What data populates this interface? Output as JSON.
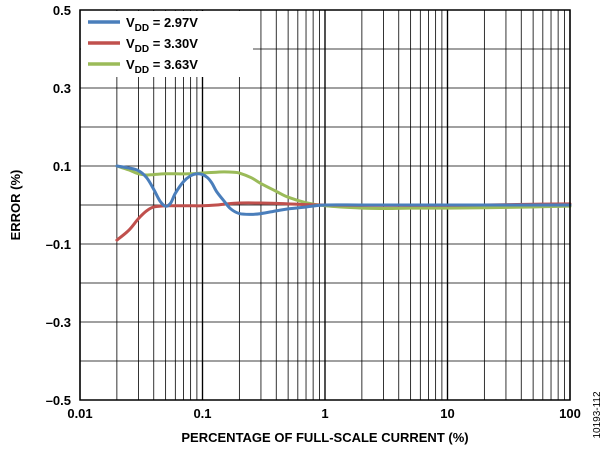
{
  "chart_data": {
    "type": "line",
    "xlabel": "PERCENTAGE OF FULL-SCALE CURRENT (%)",
    "ylabel": "ERROR (%)",
    "x_scale": "log",
    "xlim": [
      0.01,
      100
    ],
    "ylim": [
      -0.5,
      0.5
    ],
    "x_ticks": [
      {
        "value": 0.01,
        "label": "0.01"
      },
      {
        "value": 0.1,
        "label": "0.1"
      },
      {
        "value": 1,
        "label": "1"
      },
      {
        "value": 10,
        "label": "10"
      },
      {
        "value": 100,
        "label": "100"
      }
    ],
    "y_ticks": [
      {
        "value": 0.5,
        "label": "0.5"
      },
      {
        "value": 0.3,
        "label": "0.3"
      },
      {
        "value": 0.1,
        "label": "0.1"
      },
      {
        "value": -0.1,
        "label": "–0.1"
      },
      {
        "value": -0.3,
        "label": "–0.3"
      },
      {
        "value": -0.5,
        "label": "–0.5"
      }
    ],
    "grid": true,
    "legend_position": "top-left",
    "series": [
      {
        "name_main": "V",
        "name_sub": "DD",
        "name_rest": " = 2.97V",
        "color": "#4a7ebb",
        "x": [
          0.02,
          0.025,
          0.03,
          0.035,
          0.04,
          0.045,
          0.05,
          0.055,
          0.06,
          0.07,
          0.08,
          0.09,
          0.1,
          0.11,
          0.12,
          0.13,
          0.15,
          0.17,
          0.2,
          0.25,
          0.3,
          0.4,
          0.5,
          0.7,
          1,
          2,
          5,
          10,
          20,
          50,
          100
        ],
        "y": [
          0.1,
          0.095,
          0.088,
          0.07,
          0.04,
          0.01,
          -0.003,
          0.005,
          0.03,
          0.06,
          0.075,
          0.08,
          0.078,
          0.07,
          0.055,
          0.035,
          0.01,
          -0.01,
          -0.022,
          -0.024,
          -0.022,
          -0.015,
          -0.01,
          -0.005,
          0,
          0,
          0,
          0,
          0,
          0,
          0
        ]
      },
      {
        "name_main": "V",
        "name_sub": "DD",
        "name_rest": " = 3.30V",
        "color": "#c0504d",
        "x": [
          0.02,
          0.025,
          0.03,
          0.035,
          0.04,
          0.05,
          0.06,
          0.08,
          0.1,
          0.13,
          0.15,
          0.2,
          0.3,
          0.5,
          0.7,
          1,
          2,
          5,
          10,
          20,
          50,
          100
        ],
        "y": [
          -0.09,
          -0.065,
          -0.035,
          -0.015,
          -0.005,
          -0.002,
          -0.002,
          -0.002,
          -0.002,
          0,
          0.002,
          0.005,
          0.005,
          0.003,
          0.001,
          0,
          -0.001,
          -0.001,
          -0.001,
          0,
          0.002,
          0.003
        ]
      },
      {
        "name_main": "V",
        "name_sub": "DD",
        "name_rest": " = 3.63V",
        "color": "#9bbb59",
        "x": [
          0.02,
          0.025,
          0.03,
          0.035,
          0.04,
          0.05,
          0.06,
          0.08,
          0.1,
          0.13,
          0.15,
          0.18,
          0.2,
          0.25,
          0.3,
          0.4,
          0.5,
          0.7,
          1,
          2,
          3,
          5,
          10,
          20,
          50,
          100
        ],
        "y": [
          0.1,
          0.09,
          0.08,
          0.077,
          0.078,
          0.08,
          0.08,
          0.08,
          0.082,
          0.084,
          0.085,
          0.084,
          0.082,
          0.07,
          0.055,
          0.035,
          0.02,
          0.006,
          -0.002,
          -0.008,
          -0.009,
          -0.008,
          -0.008,
          -0.007,
          -0.005,
          -0.003
        ]
      }
    ]
  },
  "figure_id": "10193-112"
}
